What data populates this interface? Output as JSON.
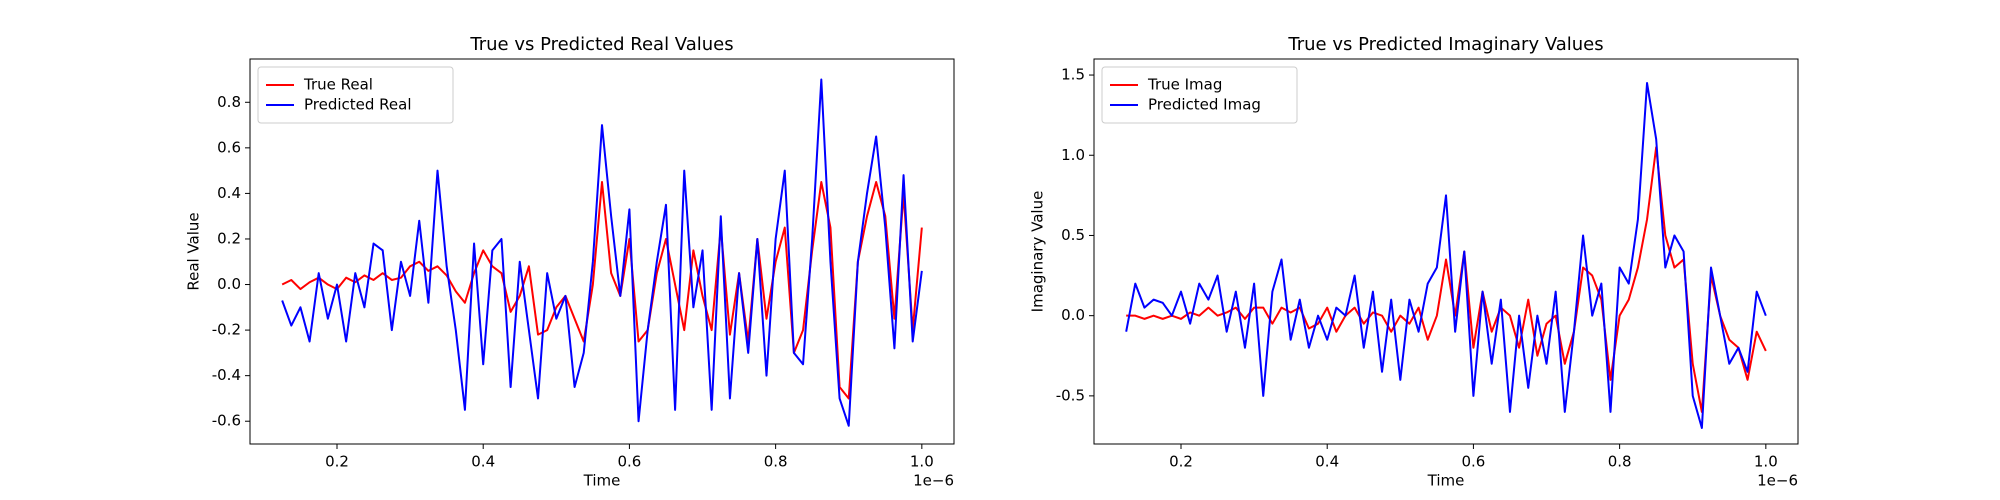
{
  "chart_data": [
    {
      "type": "line",
      "title": "True vs Predicted Real Values",
      "x_label": "Time",
      "y_label": "Real Value",
      "x_offset_label": "1e−6",
      "legend": "upper left",
      "x": [
        0.125,
        0.1375,
        0.15,
        0.1625,
        0.175,
        0.1875,
        0.2,
        0.2125,
        0.225,
        0.2375,
        0.25,
        0.2625,
        0.275,
        0.2875,
        0.3,
        0.3125,
        0.325,
        0.3375,
        0.35,
        0.3625,
        0.375,
        0.3875,
        0.4,
        0.4125,
        0.425,
        0.4375,
        0.45,
        0.4625,
        0.475,
        0.4875,
        0.5,
        0.5125,
        0.525,
        0.5375,
        0.55,
        0.5625,
        0.575,
        0.5875,
        0.6,
        0.6125,
        0.625,
        0.6375,
        0.65,
        0.6625,
        0.675,
        0.6875,
        0.7,
        0.7125,
        0.725,
        0.7375,
        0.75,
        0.7625,
        0.775,
        0.7875,
        0.8,
        0.8125,
        0.825,
        0.8375,
        0.85,
        0.8625,
        0.875,
        0.8875,
        0.9,
        0.9125,
        0.925,
        0.9375,
        0.95,
        0.9625,
        0.975,
        0.9875,
        1.0
      ],
      "series": [
        {
          "name": "True Real",
          "color": "#ff0000",
          "values": [
            0,
            0.02,
            -0.02,
            0.01,
            0.03,
            0.0,
            -0.02,
            0.03,
            0.01,
            0.04,
            0.02,
            0.05,
            0.02,
            0.03,
            0.08,
            0.1,
            0.06,
            0.08,
            0.04,
            -0.03,
            -0.08,
            0.05,
            0.15,
            0.08,
            0.05,
            -0.12,
            -0.05,
            0.08,
            -0.22,
            -0.2,
            -0.1,
            -0.05,
            -0.15,
            -0.25,
            0.0,
            0.45,
            0.05,
            -0.05,
            0.2,
            -0.25,
            -0.2,
            0.05,
            0.2,
            0.0,
            -0.2,
            0.15,
            -0.05,
            -0.2,
            0.25,
            -0.22,
            0.05,
            -0.25,
            0.2,
            -0.15,
            0.1,
            0.25,
            -0.3,
            -0.2,
            0.15,
            0.45,
            0.25,
            -0.45,
            -0.5,
            0.1,
            0.3,
            0.45,
            0.3,
            -0.15,
            0.4,
            -0.2,
            0.25
          ]
        },
        {
          "name": "Predicted Real",
          "color": "#0000ff",
          "values": [
            -0.07,
            -0.18,
            -0.1,
            -0.25,
            0.05,
            -0.15,
            0.0,
            -0.25,
            0.05,
            -0.1,
            0.18,
            0.15,
            -0.2,
            0.1,
            -0.05,
            0.28,
            -0.08,
            0.5,
            0.08,
            -0.2,
            -0.55,
            0.18,
            -0.35,
            0.15,
            0.2,
            -0.45,
            0.1,
            -0.2,
            -0.5,
            0.05,
            -0.15,
            -0.05,
            -0.45,
            -0.3,
            0.1,
            0.7,
            0.3,
            -0.05,
            0.33,
            -0.6,
            -0.2,
            0.1,
            0.35,
            -0.55,
            0.5,
            -0.1,
            0.15,
            -0.55,
            0.3,
            -0.5,
            0.05,
            -0.3,
            0.2,
            -0.4,
            0.2,
            0.5,
            -0.3,
            -0.35,
            0.2,
            0.9,
            0.1,
            -0.5,
            -0.62,
            0.1,
            0.4,
            0.65,
            0.25,
            -0.28,
            0.48,
            -0.25,
            0.06
          ]
        }
      ],
      "xlim": [
        0.081,
        1.044
      ],
      "xticks": [
        0.2,
        0.4,
        0.6,
        0.8,
        {
          "value": 1,
          "label": "1.0"
        }
      ],
      "ylim": [
        -0.7,
        0.99
      ],
      "yticks": [
        -0.6,
        -0.4,
        -0.2,
        {
          "value": 0,
          "label": "0.0"
        },
        0.2,
        0.4,
        0.6,
        0.8
      ]
    },
    {
      "type": "line",
      "title": "True vs Predicted Imaginary Values",
      "x_label": "Time",
      "y_label": "Imaginary Value",
      "x_offset_label": "1e−6",
      "legend": "upper left",
      "x": [
        0.125,
        0.1375,
        0.15,
        0.1625,
        0.175,
        0.1875,
        0.2,
        0.2125,
        0.225,
        0.2375,
        0.25,
        0.2625,
        0.275,
        0.2875,
        0.3,
        0.3125,
        0.325,
        0.3375,
        0.35,
        0.3625,
        0.375,
        0.3875,
        0.4,
        0.4125,
        0.425,
        0.4375,
        0.45,
        0.4625,
        0.475,
        0.4875,
        0.5,
        0.5125,
        0.525,
        0.5375,
        0.55,
        0.5625,
        0.575,
        0.5875,
        0.6,
        0.6125,
        0.625,
        0.6375,
        0.65,
        0.6625,
        0.675,
        0.6875,
        0.7,
        0.7125,
        0.725,
        0.7375,
        0.75,
        0.7625,
        0.775,
        0.7875,
        0.8,
        0.8125,
        0.825,
        0.8375,
        0.85,
        0.8625,
        0.875,
        0.8875,
        0.9,
        0.9125,
        0.925,
        0.9375,
        0.95,
        0.9625,
        0.975,
        0.9875,
        1.0
      ],
      "series": [
        {
          "name": "True Imag",
          "color": "#ff0000",
          "values": [
            0.0,
            0.0,
            -0.02,
            0.0,
            -0.02,
            0.0,
            -0.02,
            0.02,
            0.0,
            0.05,
            0.0,
            0.02,
            0.05,
            -0.02,
            0.05,
            0.05,
            -0.05,
            0.05,
            0.02,
            0.05,
            -0.08,
            -0.05,
            0.05,
            -0.1,
            0.0,
            0.05,
            -0.05,
            0.02,
            0.0,
            -0.1,
            0.0,
            -0.05,
            0.05,
            -0.15,
            0.0,
            0.35,
            0.0,
            0.4,
            -0.2,
            0.15,
            -0.1,
            0.05,
            0.0,
            -0.2,
            0.1,
            -0.25,
            -0.05,
            0.0,
            -0.3,
            -0.1,
            0.3,
            0.25,
            0.1,
            -0.4,
            0.0,
            0.1,
            0.3,
            0.6,
            1.05,
            0.5,
            0.3,
            0.35,
            -0.3,
            -0.6,
            0.25,
            0.0,
            -0.15,
            -0.2,
            -0.4,
            -0.1,
            -0.22
          ]
        },
        {
          "name": "Predicted Imag",
          "color": "#0000ff",
          "values": [
            -0.1,
            0.2,
            0.05,
            0.1,
            0.08,
            0.0,
            0.15,
            -0.05,
            0.2,
            0.1,
            0.25,
            -0.1,
            0.15,
            -0.2,
            0.2,
            -0.5,
            0.15,
            0.35,
            -0.15,
            0.1,
            -0.2,
            0.0,
            -0.15,
            0.05,
            0.0,
            0.25,
            -0.2,
            0.15,
            -0.35,
            0.1,
            -0.4,
            0.1,
            -0.1,
            0.2,
            0.3,
            0.75,
            -0.1,
            0.4,
            -0.5,
            0.15,
            -0.3,
            0.1,
            -0.6,
            0.0,
            -0.45,
            0.0,
            -0.3,
            0.15,
            -0.6,
            -0.1,
            0.5,
            0.0,
            0.2,
            -0.6,
            0.3,
            0.2,
            0.6,
            1.45,
            1.1,
            0.3,
            0.5,
            0.4,
            -0.5,
            -0.7,
            0.3,
            0.0,
            -0.3,
            -0.2,
            -0.35,
            0.15,
            0.0
          ]
        }
      ],
      "xlim": [
        0.081,
        1.044
      ],
      "xticks": [
        0.2,
        0.4,
        0.6,
        0.8,
        {
          "value": 1,
          "label": "1.0"
        }
      ],
      "ylim": [
        -0.8,
        1.6
      ],
      "yticks": [
        -0.5,
        {
          "value": 0,
          "label": "0.0"
        },
        0.5,
        {
          "value": 1,
          "label": "1.0"
        },
        1.5
      ]
    }
  ]
}
